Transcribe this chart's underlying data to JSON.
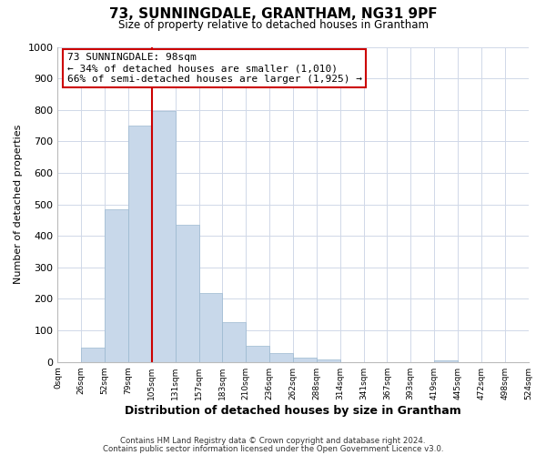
{
  "title": "73, SUNNINGDALE, GRANTHAM, NG31 9PF",
  "subtitle": "Size of property relative to detached houses in Grantham",
  "xlabel": "Distribution of detached houses by size in Grantham",
  "ylabel": "Number of detached properties",
  "bin_labels": [
    "0sqm",
    "26sqm",
    "52sqm",
    "79sqm",
    "105sqm",
    "131sqm",
    "157sqm",
    "183sqm",
    "210sqm",
    "236sqm",
    "262sqm",
    "288sqm",
    "314sqm",
    "341sqm",
    "367sqm",
    "393sqm",
    "419sqm",
    "445sqm",
    "472sqm",
    "498sqm",
    "524sqm"
  ],
  "bar_values": [
    0,
    45,
    485,
    750,
    795,
    435,
    220,
    125,
    52,
    28,
    15,
    8,
    0,
    0,
    0,
    0,
    5,
    0,
    0,
    0,
    0
  ],
  "bar_color": "#c8d8ea",
  "bar_edge_color": "#9ab8d0",
  "vline_color": "#cc0000",
  "ylim": [
    0,
    1000
  ],
  "yticks": [
    0,
    100,
    200,
    300,
    400,
    500,
    600,
    700,
    800,
    900,
    1000
  ],
  "annotation_title": "73 SUNNINGDALE: 98sqm",
  "annotation_line1": "← 34% of detached houses are smaller (1,010)",
  "annotation_line2": "66% of semi-detached houses are larger (1,925) →",
  "annotation_box_color": "#ffffff",
  "annotation_box_edge": "#cc0000",
  "footer1": "Contains HM Land Registry data © Crown copyright and database right 2024.",
  "footer2": "Contains public sector information licensed under the Open Government Licence v3.0.",
  "background_color": "#ffffff",
  "grid_color": "#d0d8e8"
}
